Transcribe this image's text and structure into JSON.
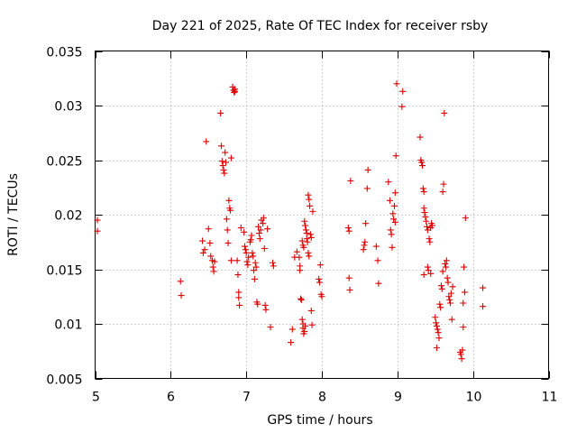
{
  "chart_data": {
    "type": "scatter",
    "title": "Day 221 of 2025, Rate Of TEC Index for receiver rsby",
    "xlabel": "GPS time / hours",
    "ylabel": "ROTI / TECUs",
    "xlim": [
      5,
      11
    ],
    "ylim": [
      0.005,
      0.035
    ],
    "xticks": [
      5,
      6,
      7,
      8,
      9,
      10,
      11
    ],
    "xtick_labels": [
      "5",
      "6",
      "7",
      "8",
      "9",
      "10",
      "11"
    ],
    "yticks": [
      0.005,
      0.01,
      0.015,
      0.02,
      0.025,
      0.03,
      0.035
    ],
    "ytick_labels": [
      "0.005",
      "0.01",
      "0.015",
      "0.02",
      "0.025",
      "0.03",
      "0.035"
    ],
    "grid": true,
    "marker": "+",
    "color": "#dd0000",
    "series": [
      {
        "name": "ROTI",
        "points": [
          [
            5.03,
            0.0195
          ],
          [
            5.03,
            0.0185
          ],
          [
            6.13,
            0.0139
          ],
          [
            6.14,
            0.0126
          ],
          [
            6.42,
            0.0176
          ],
          [
            6.43,
            0.0165
          ],
          [
            6.45,
            0.0168
          ],
          [
            6.47,
            0.0267
          ],
          [
            6.5,
            0.0187
          ],
          [
            6.52,
            0.0174
          ],
          [
            6.53,
            0.0162
          ],
          [
            6.55,
            0.0158
          ],
          [
            6.56,
            0.0152
          ],
          [
            6.57,
            0.0148
          ],
          [
            6.58,
            0.0157
          ],
          [
            6.66,
            0.0293
          ],
          [
            6.67,
            0.0263
          ],
          [
            6.68,
            0.0249
          ],
          [
            6.69,
            0.0245
          ],
          [
            6.7,
            0.0241
          ],
          [
            6.71,
            0.0238
          ],
          [
            6.72,
            0.0257
          ],
          [
            6.73,
            0.0248
          ],
          [
            6.74,
            0.0196
          ],
          [
            6.75,
            0.0186
          ],
          [
            6.76,
            0.0174
          ],
          [
            6.77,
            0.0213
          ],
          [
            6.78,
            0.0206
          ],
          [
            6.79,
            0.0204
          ],
          [
            6.8,
            0.0252
          ],
          [
            6.8,
            0.0158
          ],
          [
            6.82,
            0.0317
          ],
          [
            6.83,
            0.0314
          ],
          [
            6.84,
            0.0312
          ],
          [
            6.85,
            0.0315
          ],
          [
            6.85,
            0.0313
          ],
          [
            6.88,
            0.0158
          ],
          [
            6.89,
            0.0145
          ],
          [
            6.9,
            0.0129
          ],
          [
            6.9,
            0.0124
          ],
          [
            6.91,
            0.0117
          ],
          [
            6.93,
            0.0188
          ],
          [
            6.97,
            0.0184
          ],
          [
            6.98,
            0.0171
          ],
          [
            6.99,
            0.0168
          ],
          [
            7.0,
            0.0165
          ],
          [
            7.01,
            0.0157
          ],
          [
            7.02,
            0.0154
          ],
          [
            7.03,
            0.0161
          ],
          [
            7.05,
            0.0175
          ],
          [
            7.06,
            0.0177
          ],
          [
            7.07,
            0.0181
          ],
          [
            7.08,
            0.0165
          ],
          [
            7.09,
            0.0162
          ],
          [
            7.1,
            0.0149
          ],
          [
            7.11,
            0.0141
          ],
          [
            7.12,
            0.0156
          ],
          [
            7.13,
            0.0152
          ],
          [
            7.14,
            0.012
          ],
          [
            7.15,
            0.0118
          ],
          [
            7.16,
            0.0189
          ],
          [
            7.17,
            0.0183
          ],
          [
            7.18,
            0.0178
          ],
          [
            7.19,
            0.0186
          ],
          [
            7.2,
            0.0195
          ],
          [
            7.22,
            0.0192
          ],
          [
            7.23,
            0.0197
          ],
          [
            7.24,
            0.0169
          ],
          [
            7.25,
            0.0117
          ],
          [
            7.26,
            0.0113
          ],
          [
            7.28,
            0.0187
          ],
          [
            7.32,
            0.0097
          ],
          [
            7.35,
            0.0156
          ],
          [
            7.36,
            0.0153
          ],
          [
            7.59,
            0.0083
          ],
          [
            7.61,
            0.0095
          ],
          [
            7.64,
            0.0161
          ],
          [
            7.67,
            0.0166
          ],
          [
            7.7,
            0.0161
          ],
          [
            7.71,
            0.0153
          ],
          [
            7.71,
            0.0149
          ],
          [
            7.72,
            0.0123
          ],
          [
            7.73,
            0.0122
          ],
          [
            7.74,
            0.0104
          ],
          [
            7.75,
            0.01
          ],
          [
            7.75,
            0.0096
          ],
          [
            7.76,
            0.0091
          ],
          [
            7.77,
            0.0093
          ],
          [
            7.78,
            0.0098
          ],
          [
            7.74,
            0.0176
          ],
          [
            7.75,
            0.0172
          ],
          [
            7.76,
            0.017
          ],
          [
            7.77,
            0.0194
          ],
          [
            7.78,
            0.019
          ],
          [
            7.79,
            0.0186
          ],
          [
            7.8,
            0.0183
          ],
          [
            7.8,
            0.0178
          ],
          [
            7.81,
            0.0175
          ],
          [
            7.82,
            0.0218
          ],
          [
            7.83,
            0.0214
          ],
          [
            7.84,
            0.0208
          ],
          [
            7.82,
            0.0165
          ],
          [
            7.83,
            0.0162
          ],
          [
            7.85,
            0.0182
          ],
          [
            7.86,
            0.0179
          ],
          [
            7.86,
            0.0112
          ],
          [
            7.87,
            0.0099
          ],
          [
            7.88,
            0.0203
          ],
          [
            7.96,
            0.0141
          ],
          [
            7.97,
            0.0138
          ],
          [
            7.98,
            0.0154
          ],
          [
            7.99,
            0.0127
          ],
          [
            8.0,
            0.0125
          ],
          [
            8.35,
            0.0188
          ],
          [
            8.36,
            0.0185
          ],
          [
            8.36,
            0.0142
          ],
          [
            8.37,
            0.0131
          ],
          [
            8.38,
            0.0231
          ],
          [
            8.55,
            0.0168
          ],
          [
            8.56,
            0.0172
          ],
          [
            8.57,
            0.0175
          ],
          [
            8.58,
            0.0192
          ],
          [
            8.6,
            0.0224
          ],
          [
            8.61,
            0.0241
          ],
          [
            8.72,
            0.0171
          ],
          [
            8.74,
            0.0158
          ],
          [
            8.75,
            0.0137
          ],
          [
            8.88,
            0.023
          ],
          [
            8.9,
            0.0213
          ],
          [
            8.91,
            0.0186
          ],
          [
            8.92,
            0.0182
          ],
          [
            8.93,
            0.017
          ],
          [
            8.94,
            0.0201
          ],
          [
            8.95,
            0.0196
          ],
          [
            8.96,
            0.0208
          ],
          [
            8.97,
            0.0193
          ],
          [
            8.97,
            0.022
          ],
          [
            8.98,
            0.0254
          ],
          [
            8.99,
            0.032
          ],
          [
            9.07,
            0.0313
          ],
          [
            9.06,
            0.0299
          ],
          [
            9.3,
            0.0271
          ],
          [
            9.31,
            0.025
          ],
          [
            9.32,
            0.0248
          ],
          [
            9.33,
            0.0245
          ],
          [
            9.34,
            0.0224
          ],
          [
            9.35,
            0.0221
          ],
          [
            9.35,
            0.0206
          ],
          [
            9.36,
            0.0202
          ],
          [
            9.37,
            0.0198
          ],
          [
            9.38,
            0.0194
          ],
          [
            9.39,
            0.0189
          ],
          [
            9.4,
            0.0186
          ],
          [
            9.4,
            0.0152
          ],
          [
            9.41,
            0.0149
          ],
          [
            9.42,
            0.0178
          ],
          [
            9.43,
            0.0175
          ],
          [
            9.44,
            0.0188
          ],
          [
            9.45,
            0.0192
          ],
          [
            9.46,
            0.019
          ],
          [
            9.35,
            0.0145
          ],
          [
            9.44,
            0.0146
          ],
          [
            9.5,
            0.0106
          ],
          [
            9.51,
            0.0101
          ],
          [
            9.52,
            0.0098
          ],
          [
            9.52,
            0.0078
          ],
          [
            9.53,
            0.0095
          ],
          [
            9.54,
            0.0092
          ],
          [
            9.55,
            0.0087
          ],
          [
            9.56,
            0.0118
          ],
          [
            9.57,
            0.0115
          ],
          [
            9.58,
            0.0135
          ],
          [
            9.59,
            0.0132
          ],
          [
            9.6,
            0.0148
          ],
          [
            9.6,
            0.0221
          ],
          [
            9.61,
            0.0228
          ],
          [
            9.62,
            0.0293
          ],
          [
            9.63,
            0.0155
          ],
          [
            9.64,
            0.0152
          ],
          [
            9.65,
            0.0158
          ],
          [
            9.66,
            0.0142
          ],
          [
            9.67,
            0.0138
          ],
          [
            9.68,
            0.0125
          ],
          [
            9.69,
            0.0122
          ],
          [
            9.7,
            0.0119
          ],
          [
            9.71,
            0.0128
          ],
          [
            9.72,
            0.0104
          ],
          [
            9.73,
            0.0134
          ],
          [
            9.83,
            0.0074
          ],
          [
            9.84,
            0.0072
          ],
          [
            9.85,
            0.0068
          ],
          [
            9.86,
            0.0076
          ],
          [
            9.87,
            0.0097
          ],
          [
            9.87,
            0.0119
          ],
          [
            9.88,
            0.0152
          ],
          [
            9.89,
            0.0129
          ],
          [
            9.9,
            0.0197
          ],
          [
            10.13,
            0.0133
          ],
          [
            10.13,
            0.0116
          ]
        ]
      }
    ]
  }
}
